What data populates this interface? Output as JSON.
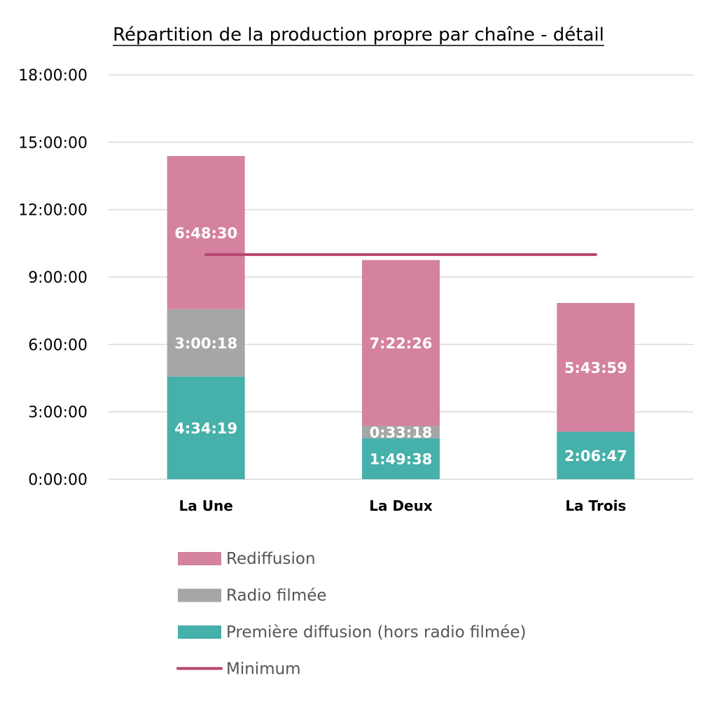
{
  "chart_data": {
    "type": "bar",
    "stacked": true,
    "title": "Répartition de la production propre par chaîne - détail",
    "categories": [
      "La Une",
      "La Deux",
      "La Trois"
    ],
    "y_ticks": [
      "0:00:00",
      "3:00:00",
      "6:00:00",
      "9:00:00",
      "12:00:00",
      "15:00:00",
      "18:00:00"
    ],
    "ylim_hours": [
      0,
      18
    ],
    "grid": true,
    "legend_position": "bottom",
    "series": [
      {
        "name": "Première diffusion (hors radio filmée)",
        "color": "#46b0aa",
        "values_hours": [
          4.5719,
          1.8272,
          2.1131
        ],
        "labels": [
          "4:34:19",
          "1:49:38",
          "2:06:47"
        ]
      },
      {
        "name": "Radio filmée",
        "color": "#a6a6a6",
        "values_hours": [
          3.005,
          0.555,
          0
        ],
        "labels": [
          "3:00:18",
          "0:33:18",
          ""
        ]
      },
      {
        "name": "Rediffusion",
        "color": "#d4829f",
        "values_hours": [
          6.8083,
          7.3739,
          5.7331
        ],
        "labels": [
          "6:48:30",
          "7:22:26",
          "5:43:59"
        ]
      }
    ],
    "line_series": {
      "name": "Minimum",
      "color": "#b6446e",
      "value_hours": 10
    },
    "legend": [
      {
        "name": "Rediffusion",
        "kind": "box",
        "color": "#d4829f"
      },
      {
        "name": "Radio filmée",
        "kind": "box",
        "color": "#a6a6a6"
      },
      {
        "name": "Première diffusion (hors radio filmée)",
        "kind": "box",
        "color": "#46b0aa"
      },
      {
        "name": "Minimum",
        "kind": "line",
        "color": "#b6446e"
      }
    ]
  }
}
